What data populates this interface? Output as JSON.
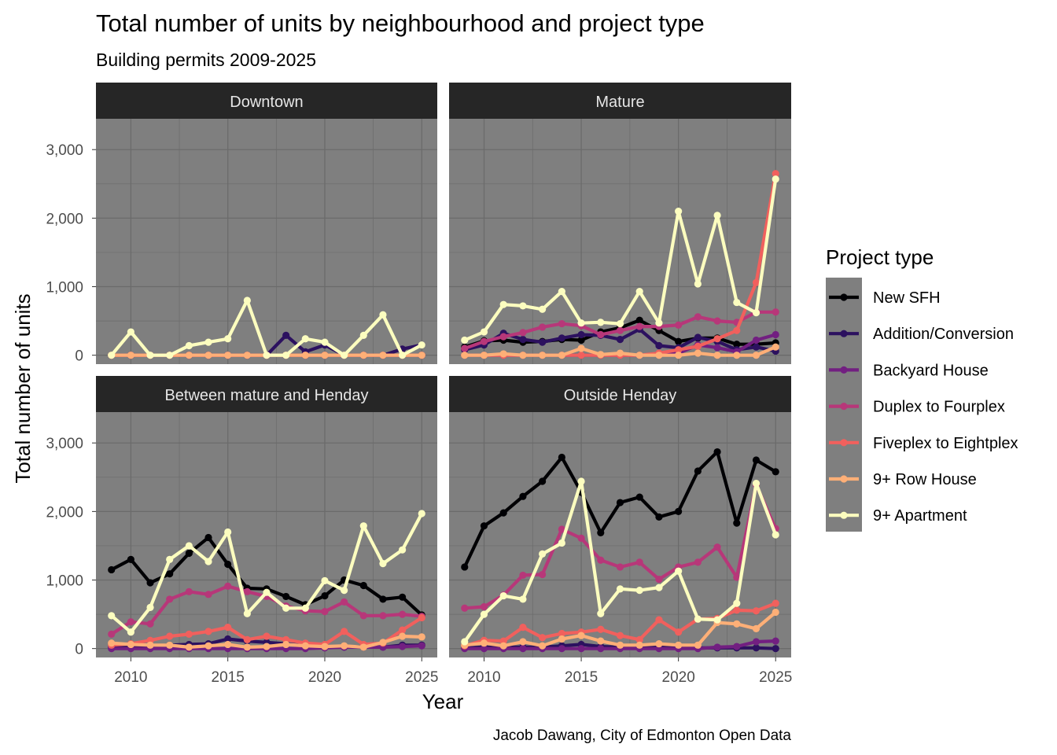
{
  "chart_data": {
    "type": "line",
    "title": "Total number of units by neighbourhood and project type",
    "subtitle": "Building permits 2009-2025",
    "xlabel": "Year",
    "ylabel": "Total number of units",
    "caption": "Jacob Dawang, City of Edmonton Open Data",
    "x": [
      2009,
      2010,
      2011,
      2012,
      2013,
      2014,
      2015,
      2016,
      2017,
      2018,
      2019,
      2020,
      2021,
      2022,
      2023,
      2024,
      2025
    ],
    "xlim": [
      2008.2,
      2025.8
    ],
    "ylim": [
      -130,
      3450
    ],
    "xticks": [
      2010,
      2015,
      2020,
      2025
    ],
    "xtick_labels": [
      "2010",
      "2015",
      "2020",
      "2025"
    ],
    "yticks": [
      0,
      1000,
      2000,
      3000
    ],
    "ytick_labels": [
      "0",
      "1,000",
      "2,000",
      "3,000"
    ],
    "grid": true,
    "legend": {
      "title": "Project type",
      "position": "right",
      "entries": [
        "New SFH",
        "Addition/Conversion",
        "Backyard House",
        "Duplex to Fourplex",
        "Fiveplex to Eightplex",
        "9+ Row House",
        "9+ Apartment"
      ]
    },
    "colors": {
      "New SFH": "#000004",
      "Addition/Conversion": "#2C115F",
      "Backyard House": "#721F81",
      "Duplex to Fourplex": "#B73779",
      "Fiveplex to Eightplex": "#F1605D",
      "9+ Row House": "#FEAF77",
      "9+ Apartment": "#FCFDBF",
      "panel_bg": "#7F7F7F",
      "strip_bg": "#262626",
      "strip_text": "#E6E6E6",
      "grid": "#6B6B6B"
    },
    "panels": [
      {
        "name": "Downtown",
        "series": [
          {
            "name": "New SFH",
            "values": [
              0,
              0,
              0,
              0,
              0,
              0,
              0,
              0,
              0,
              0,
              0,
              0,
              0,
              0,
              0,
              0,
              0
            ]
          },
          {
            "name": "Addition/Conversion",
            "values": [
              0,
              0,
              0,
              0,
              0,
              0,
              0,
              0,
              0,
              290,
              50,
              150,
              0,
              0,
              0,
              90,
              150
            ]
          },
          {
            "name": "Backyard House",
            "values": [
              0,
              0,
              0,
              0,
              0,
              0,
              0,
              0,
              0,
              0,
              0,
              0,
              0,
              0,
              0,
              0,
              0
            ]
          },
          {
            "name": "Duplex to Fourplex",
            "values": [
              0,
              0,
              0,
              0,
              0,
              0,
              0,
              0,
              0,
              0,
              0,
              0,
              0,
              0,
              0,
              0,
              0
            ]
          },
          {
            "name": "Fiveplex to Eightplex",
            "values": [
              0,
              0,
              0,
              0,
              0,
              0,
              0,
              0,
              0,
              0,
              0,
              0,
              0,
              0,
              0,
              0,
              0
            ]
          },
          {
            "name": "9+ Row House",
            "values": [
              0,
              0,
              0,
              0,
              0,
              0,
              0,
              0,
              0,
              0,
              0,
              0,
              0,
              0,
              0,
              0,
              0
            ]
          },
          {
            "name": "9+ Apartment",
            "values": [
              0,
              340,
              0,
              0,
              140,
              190,
              240,
              800,
              0,
              0,
              240,
              190,
              0,
              290,
              590,
              0,
              150
            ]
          }
        ]
      },
      {
        "name": "Mature",
        "series": [
          {
            "name": "New SFH",
            "values": [
              120,
              210,
              220,
              190,
              200,
              230,
              220,
              340,
              400,
              510,
              360,
              200,
              250,
              250,
              160,
              160,
              180
            ]
          },
          {
            "name": "Addition/Conversion",
            "values": [
              80,
              150,
              320,
              230,
              190,
              250,
              300,
              290,
              230,
              380,
              140,
              110,
              260,
              200,
              80,
              120,
              60
            ]
          },
          {
            "name": "Backyard House",
            "values": [
              0,
              0,
              0,
              0,
              0,
              0,
              0,
              0,
              0,
              0,
              10,
              30,
              150,
              110,
              50,
              220,
              300
            ]
          },
          {
            "name": "Duplex to Fourplex",
            "values": [
              100,
              200,
              270,
              330,
              410,
              460,
              430,
              300,
              360,
              420,
              420,
              440,
              560,
              500,
              480,
              630,
              630
            ]
          },
          {
            "name": "Fiveplex to Eightplex",
            "values": [
              0,
              0,
              0,
              0,
              0,
              0,
              0,
              0,
              0,
              0,
              30,
              80,
              130,
              240,
              360,
              1060,
              2650
            ]
          },
          {
            "name": "9+ Row House",
            "values": [
              0,
              0,
              20,
              0,
              0,
              0,
              100,
              10,
              30,
              0,
              0,
              0,
              30,
              0,
              0,
              0,
              120
            ]
          },
          {
            "name": "9+ Apartment",
            "values": [
              220,
              340,
              740,
              720,
              670,
              930,
              470,
              480,
              460,
              930,
              470,
              2100,
              1040,
              2040,
              770,
              620,
              2570
            ]
          }
        ]
      },
      {
        "name": "Between mature and Henday",
        "series": [
          {
            "name": "New SFH",
            "values": [
              1150,
              1300,
              960,
              1090,
              1390,
              1620,
              1230,
              880,
              870,
              760,
              640,
              770,
              1000,
              920,
              720,
              750,
              490
            ]
          },
          {
            "name": "Addition/Conversion",
            "values": [
              20,
              30,
              40,
              50,
              60,
              70,
              140,
              110,
              90,
              70,
              40,
              20,
              20,
              30,
              20,
              50,
              50
            ]
          },
          {
            "name": "Backyard House",
            "values": [
              0,
              0,
              0,
              0,
              0,
              0,
              0,
              0,
              0,
              0,
              0,
              10,
              20,
              20,
              20,
              30,
              40
            ]
          },
          {
            "name": "Duplex to Fourplex",
            "values": [
              210,
              390,
              360,
              720,
              830,
              790,
              910,
              830,
              760,
              620,
              550,
              540,
              680,
              480,
              480,
              500,
              470
            ]
          },
          {
            "name": "Fiveplex to Eightplex",
            "values": [
              50,
              70,
              120,
              180,
              210,
              250,
              310,
              130,
              180,
              130,
              80,
              60,
              250,
              60,
              80,
              270,
              450
            ]
          },
          {
            "name": "9+ Row House",
            "values": [
              80,
              60,
              50,
              50,
              20,
              40,
              60,
              20,
              30,
              60,
              40,
              30,
              40,
              20,
              90,
              180,
              170
            ]
          },
          {
            "name": "9+ Apartment",
            "values": [
              480,
              240,
              600,
              1300,
              1500,
              1270,
              1700,
              510,
              820,
              590,
              590,
              990,
              850,
              1790,
              1240,
              1440,
              1970
            ]
          }
        ]
      },
      {
        "name": "Outside Henday",
        "series": [
          {
            "name": "New SFH",
            "values": [
              1190,
              1790,
              1980,
              2220,
              2440,
              2790,
              2280,
              1690,
              2130,
              2210,
              1920,
              2000,
              2590,
              2870,
              1830,
              2750,
              2580
            ]
          },
          {
            "name": "Addition/Conversion",
            "values": [
              10,
              20,
              20,
              20,
              20,
              40,
              60,
              30,
              20,
              20,
              20,
              10,
              10,
              10,
              10,
              10,
              0
            ]
          },
          {
            "name": "Backyard House",
            "values": [
              0,
              0,
              0,
              0,
              0,
              0,
              0,
              0,
              0,
              0,
              0,
              0,
              0,
              20,
              30,
              100,
              110
            ]
          },
          {
            "name": "Duplex to Fourplex",
            "values": [
              590,
              610,
              780,
              1070,
              1080,
              1740,
              1610,
              1290,
              1190,
              1260,
              1010,
              1190,
              1260,
              1480,
              1040,
              2390,
              1750
            ]
          },
          {
            "name": "Fiveplex to Eightplex",
            "values": [
              40,
              120,
              110,
              310,
              160,
              220,
              240,
              280,
              190,
              130,
              420,
              240,
              430,
              440,
              560,
              550,
              660
            ]
          },
          {
            "name": "9+ Row House",
            "values": [
              50,
              80,
              40,
              100,
              40,
              140,
              190,
              110,
              50,
              50,
              70,
              50,
              50,
              380,
              360,
              290,
              530
            ]
          },
          {
            "name": "9+ Apartment",
            "values": [
              100,
              500,
              770,
              720,
              1380,
              1540,
              2440,
              510,
              870,
              850,
              890,
              1130,
              430,
              420,
              660,
              2410,
              1660
            ]
          }
        ]
      }
    ]
  }
}
